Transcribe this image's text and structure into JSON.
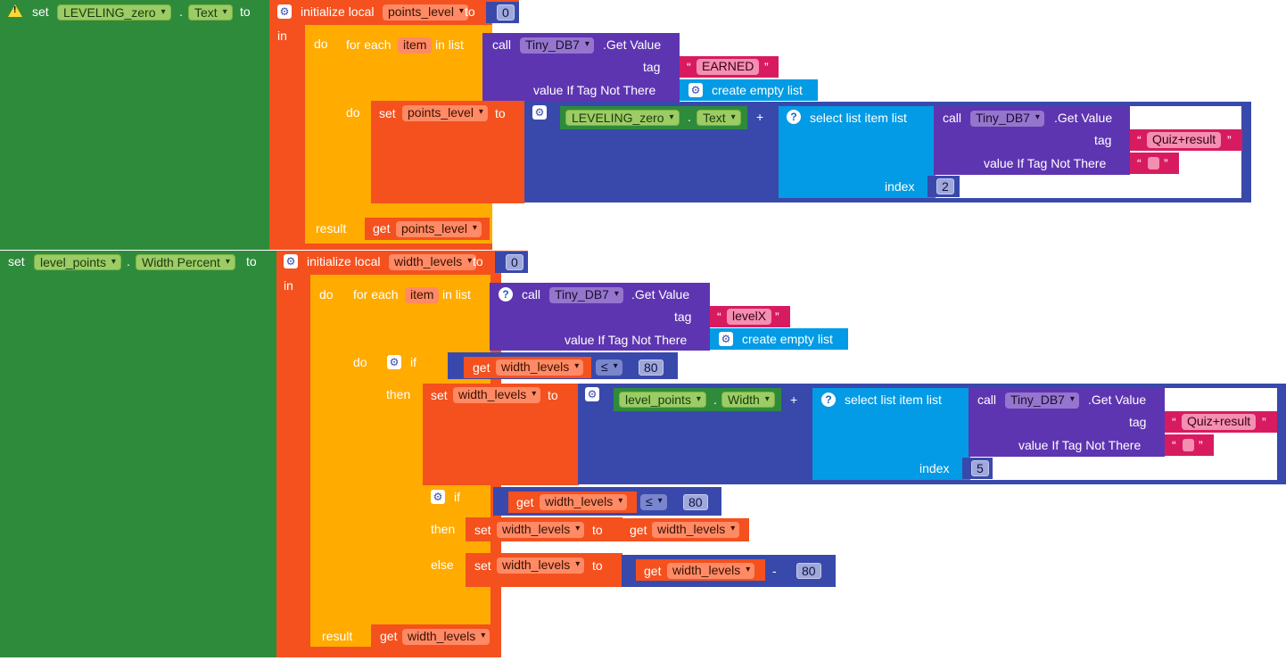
{
  "block1": {
    "set_kw": "set",
    "component": "LEVELING_zero",
    "dot": ".",
    "property": "Text",
    "to_kw": "to",
    "init_local": "initialize local",
    "var_name": "points_level",
    "to_kw2": "to",
    "init_value": "0",
    "in_kw": "in",
    "do_kw": "do",
    "foreach_kw": "for each",
    "item_var": "item",
    "in_list_kw": "in list",
    "call_kw": "call",
    "db": "Tiny_DB7",
    "getvalue": ".Get Value",
    "tag_kw": "tag",
    "tag_value": "EARNED",
    "valueif_kw": "value If Tag Not There",
    "create_empty": "create empty list",
    "inner_do_kw": "do",
    "set_kw2": "set",
    "set_var": "points_level",
    "to_kw3": "to",
    "lz_component": "LEVELING_zero",
    "lz_dot": ".",
    "lz_prop": "Text",
    "plus": "+",
    "select_list": "select list item  list",
    "call_kw2": "call",
    "db2": "Tiny_DB7",
    "getvalue2": ".Get Value",
    "tag_kw2": "tag",
    "tag_value2": "Quiz+result",
    "valueif_kw2": "value If Tag Not There",
    "index_kw": "index",
    "index_value": "2",
    "result_kw": "result",
    "get_kw": "get",
    "get_var": "points_level"
  },
  "block2": {
    "set_kw": "set",
    "component": "level_points",
    "dot": ".",
    "property": "Width Percent",
    "to_kw": "to",
    "init_local": "initialize local",
    "var_name": "width_levels",
    "to_kw2": "to",
    "init_value": "0",
    "in_kw": "in",
    "do_kw": "do",
    "foreach_kw": "for each",
    "item_var": "item",
    "in_list_kw": "in list",
    "call_kw": "call",
    "db": "Tiny_DB7",
    "getvalue": ".Get Value",
    "tag_kw": "tag",
    "tag_value": "levelX",
    "valueif_kw": "value If Tag Not There",
    "create_empty": "create empty list",
    "inner_do_kw": "do",
    "if_kw": "if",
    "if1_get": "get",
    "if1_var": "width_levels",
    "if1_op": "≤",
    "if1_num": "80",
    "then_kw": "then",
    "then_set": "set",
    "then_var": "width_levels",
    "then_to": "to",
    "lp_component": "level_points",
    "lp_dot": ".",
    "lp_prop": "Width",
    "plus": "+",
    "select_list": "select list item  list",
    "call_kw2": "call",
    "db2": "Tiny_DB7",
    "getvalue2": ".Get Value",
    "tag_kw2": "tag",
    "tag_value2": "Quiz+result",
    "valueif_kw2": "value If Tag Not There",
    "index_kw": "index",
    "index_value": "5",
    "if2_kw": "if",
    "if2_get": "get",
    "if2_var": "width_levels",
    "if2_op": "≤",
    "if2_num": "80",
    "then2_kw": "then",
    "then2_set": "set",
    "then2_var": "width_levels",
    "then2_to": "to",
    "then2_get": "get",
    "then2_getvar": "width_levels",
    "else_kw": "else",
    "else_set": "set",
    "else_var": "width_levels",
    "else_to": "to",
    "else_get": "get",
    "else_getvar": "width_levels",
    "minus": "-",
    "else_num": "80",
    "result_kw": "result",
    "get_kw": "get",
    "get_var": "width_levels"
  },
  "colors": {
    "component": "#2e8b3b",
    "variable": "#f4511e",
    "control": "#ffab00",
    "procedure": "#5e35b1",
    "math": "#3949ab",
    "list": "#039be5",
    "text": "#d81b60",
    "warning": "#fdd835"
  },
  "icons": [
    "warning-icon",
    "gear-icon",
    "help-icon",
    "dropdown-icon"
  ]
}
